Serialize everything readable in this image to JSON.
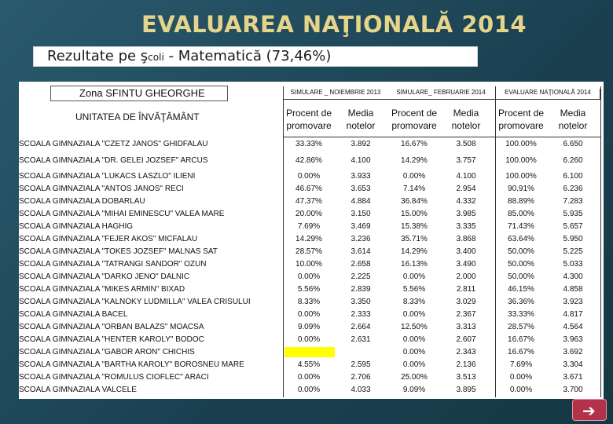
{
  "title": "EVALUAREA NAŢIONALĂ 2014",
  "subtitle_main": "Rezultate pe ş",
  "subtitle_small": "coli",
  "subtitle_rest": " -  Matematică (73,46%)",
  "zona": "Zona   SFINTU GHEORGHE",
  "unit_header": "UNITATEA DE ÎNVĂŢĂMÂNT",
  "phases": [
    "SIMULARE _ NOIEMBRIE 2013",
    "SIMULARE_ FEBRUARIE 2014",
    "EVALUARE NAŢIONALĂ 2014"
  ],
  "col_pct": "Procent de promovare",
  "col_avg": "Media notelor",
  "rows": [
    {
      "name": "SCOALA GIMNAZIALA \"CZETZ JANOS\" GHIDFALAU",
      "v": [
        "33.33%",
        "3.892",
        "16.67%",
        "3.508",
        "100.00%",
        "6.650"
      ]
    },
    {
      "name": "SCOALA GIMNAZIALA \"DR. GELEI JOZSEF\" ARCUS",
      "v": [
        "42.86%",
        "4.100",
        "14.29%",
        "3.757",
        "100.00%",
        "6.260"
      ]
    },
    {
      "name": "SCOALA GIMNAZIALA \"LUKACS LASZLO\" ILIENI",
      "v": [
        "0.00%",
        "3.933",
        "0.00%",
        "4.100",
        "100.00%",
        "6.100"
      ]
    },
    {
      "name": "SCOALA GIMNAZIALA \"ANTOS JANOS\" RECI",
      "v": [
        "46.67%",
        "3.653",
        "7.14%",
        "2.954",
        "90.91%",
        "6.236"
      ]
    },
    {
      "name": "SCOALA GIMNAZIALA DOBARLAU",
      "v": [
        "47.37%",
        "4.884",
        "36.84%",
        "4.332",
        "88.89%",
        "7.283"
      ]
    },
    {
      "name": "SCOALA GIMNAZIALA \"MIHAI EMINESCU\" VALEA MARE",
      "v": [
        "20.00%",
        "3.150",
        "15.00%",
        "3.985",
        "85.00%",
        "5.935"
      ]
    },
    {
      "name": "SCOALA GIMNAZIALA HAGHIG",
      "v": [
        "7.69%",
        "3.469",
        "15.38%",
        "3.335",
        "71.43%",
        "5.657"
      ]
    },
    {
      "name": "SCOALA GIMNAZIALA \"FEJER AKOS\" MICFALAU",
      "v": [
        "14.29%",
        "3.236",
        "35.71%",
        "3.868",
        "63.64%",
        "5.950"
      ]
    },
    {
      "name": "SCOALA GIMNAZIALA \"TOKES JOZSEF\" MALNAS SAT",
      "v": [
        "28.57%",
        "3.614",
        "14.29%",
        "3.400",
        "50.00%",
        "5.225"
      ]
    },
    {
      "name": "SCOALA GIMNAZIALA \"TATRANGI SANDOR\" OZUN",
      "v": [
        "10.00%",
        "2.658",
        "16.13%",
        "3.490",
        "50.00%",
        "5.033"
      ]
    },
    {
      "name": "SCOALA GIMNAZIALA \"DARKO JENO\" DALNIC",
      "v": [
        "0.00%",
        "2.225",
        "0.00%",
        "2.000",
        "50.00%",
        "4.300"
      ]
    },
    {
      "name": "SCOALA GIMNAZIALA \"MIKES ARMIN\" BIXAD",
      "v": [
        "5.56%",
        "2.839",
        "5.56%",
        "2.811",
        "46.15%",
        "4.858"
      ]
    },
    {
      "name": "SCOALA GIMNAZIALA \"KALNOKY LUDMILLA\" VALEA CRISULUI",
      "v": [
        "8.33%",
        "3.350",
        "8.33%",
        "3.029",
        "36.36%",
        "3.923"
      ]
    },
    {
      "name": "SCOALA GIMNAZIALA BACEL",
      "v": [
        "0.00%",
        "2.333",
        "0.00%",
        "2.367",
        "33.33%",
        "4.817"
      ]
    },
    {
      "name": "SCOALA GIMNAZIALA \"ORBAN BALAZS\" MOACSA",
      "v": [
        "9.09%",
        "2.664",
        "12.50%",
        "3.313",
        "28.57%",
        "4.564"
      ]
    },
    {
      "name": "SCOALA GIMNAZIALA \"HENTER KAROLY\" BODOC",
      "v": [
        "0.00%",
        "2.631",
        "0.00%",
        "2.607",
        "16.67%",
        "3.963"
      ]
    },
    {
      "name": "SCOALA GIMNAZIALA \"GABOR ARON\" CHICHIS",
      "v": [
        "",
        "",
        "0.00%",
        "2.343",
        "16.67%",
        "3.692"
      ]
    },
    {
      "name": "SCOALA GIMNAZIALA \"BARTHA KAROLY\" BOROSNEU MARE",
      "v": [
        "4.55%",
        "2.595",
        "0.00%",
        "2.136",
        "7.69%",
        "3.304"
      ]
    },
    {
      "name": "SCOALA GIMNAZIALA \"ROMULUS CIOFLEC\" ARACI",
      "v": [
        "0.00%",
        "2.706",
        "25.00%",
        "3.513",
        "0.00%",
        "3.671"
      ]
    },
    {
      "name": "SCOALA GIMNAZIALA VALCELE",
      "v": [
        "0.00%",
        "4.033",
        "9.09%",
        "3.895",
        "0.00%",
        "3.700"
      ]
    }
  ],
  "highlight_color": "#ffff00",
  "nav": {
    "next_icon": "arrow-right-icon"
  }
}
